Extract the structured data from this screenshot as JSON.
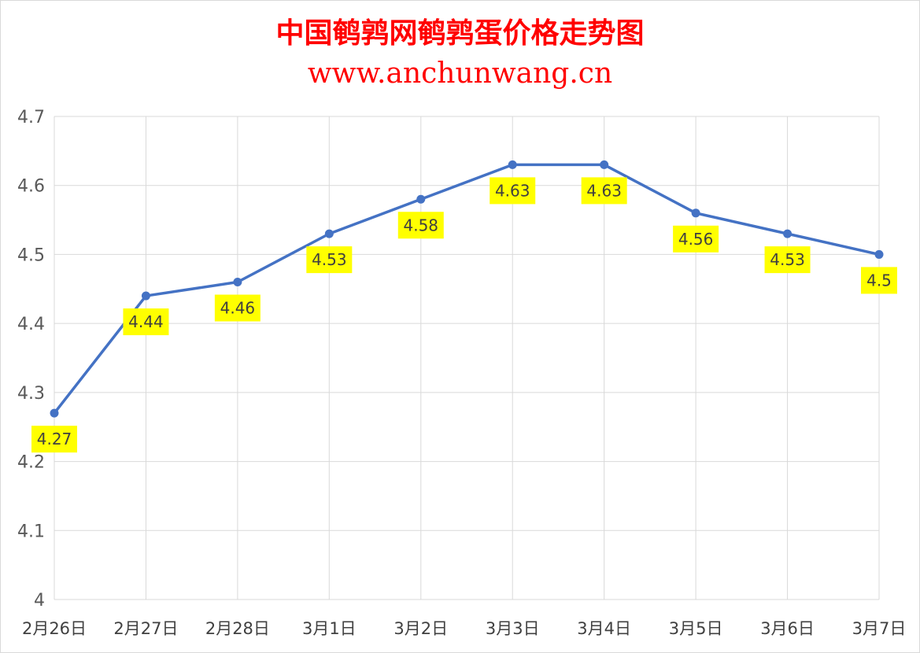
{
  "title": "中国鹌鹑网鹌鹑蛋价格走势图",
  "subtitle": "www.anchunwang.cn",
  "chart_data": {
    "type": "line",
    "title": "中国鹌鹑网鹌鹑蛋价格走势图",
    "subtitle": "www.anchunwang.cn",
    "xlabel": "",
    "ylabel": "",
    "categories": [
      "2月26日",
      "2月27日",
      "2月28日",
      "3月1日",
      "3月2日",
      "3月3日",
      "3月4日",
      "3月5日",
      "3月6日",
      "3月7日"
    ],
    "series": [
      {
        "values": [
          4.27,
          4.44,
          4.46,
          4.53,
          4.58,
          4.63,
          4.63,
          4.56,
          4.53,
          4.5
        ]
      }
    ],
    "data_labels": [
      "4.27",
      "4.44",
      "4.46",
      "4.53",
      "4.58",
      "4.63",
      "4.63",
      "4.56",
      "4.53",
      "4.5"
    ],
    "ylim": [
      4,
      4.7
    ],
    "yticks": [
      4,
      4.1,
      4.2,
      4.3,
      4.4,
      4.5,
      4.6,
      4.7
    ],
    "ytick_labels": [
      "4",
      "4.1",
      "4.2",
      "4.3",
      "4.4",
      "4.5",
      "4.6",
      "4.7"
    ],
    "grid": true,
    "legend": "none",
    "colors": {
      "line": "#4472c4",
      "label_bg": "#ffff00",
      "title": "#ff0000",
      "grid": "#d9d9d9"
    }
  }
}
